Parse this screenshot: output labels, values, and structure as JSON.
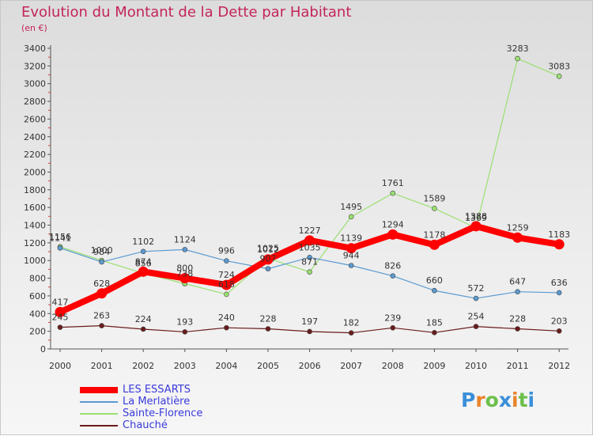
{
  "chart_data": {
    "type": "line",
    "title": "Evolution du Montant de la Dette par Habitant",
    "subtitle": "(en €)",
    "x": [
      "2000",
      "2001",
      "2002",
      "2003",
      "2004",
      "2005",
      "2006",
      "2007",
      "2008",
      "2009",
      "2010",
      "2011",
      "2012"
    ],
    "ylim": [
      0,
      3400
    ],
    "yticks": [
      0,
      200,
      400,
      600,
      800,
      1000,
      1200,
      1400,
      1600,
      1800,
      2000,
      2200,
      2400,
      2600,
      2800,
      3000,
      3200,
      3400
    ],
    "grid": false,
    "legend_position": "bottom-left",
    "series": [
      {
        "name": "LES ESSARTS",
        "color": "#ff0000",
        "values": [
          417,
          628,
          874,
          800,
          724,
          1012,
          1227,
          1139,
          1294,
          1178,
          1388,
          1259,
          1183
        ]
      },
      {
        "name": "La Merlatière",
        "color": "#5a9ad0",
        "values": [
          1141,
          984,
          1102,
          1124,
          996,
          907,
          1035,
          944,
          826,
          660,
          572,
          647,
          636
        ]
      },
      {
        "name": "Sainte-Florence",
        "color": "#99e070",
        "values": [
          1156,
          1000,
          856,
          738,
          618,
          1025,
          871,
          1495,
          1761,
          1589,
          1369,
          3283,
          3083
        ]
      },
      {
        "name": "Chauché",
        "color": "#6b1b1b",
        "values": [
          245,
          263,
          224,
          193,
          240,
          228,
          197,
          182,
          239,
          185,
          254,
          228,
          203
        ]
      }
    ]
  },
  "logo": {
    "text": "Proxiti",
    "letters": [
      "P",
      "r",
      "o",
      "x",
      "i",
      "t",
      "i"
    ],
    "colors": [
      "#3a8fd8",
      "#e9842a",
      "#6cc04a",
      "#3a8fd8",
      "#e9842a",
      "#6cc04a",
      "#3a8fd8"
    ]
  }
}
